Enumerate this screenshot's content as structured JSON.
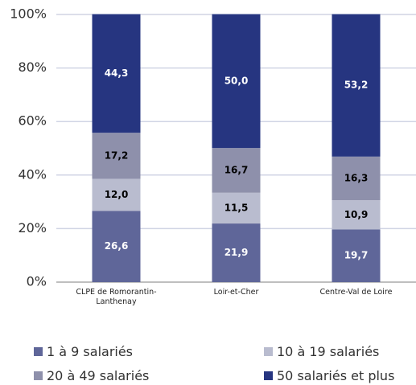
{
  "chart_data": {
    "type": "stacked_bar",
    "categories": [
      "CLPE de Romorantin-Lanthenay",
      "Loir-et-Cher",
      "Centre-Val de Loire"
    ],
    "series": [
      {
        "name": "1 à 9 salariés",
        "color": "#5f6699",
        "label_color": "#ffffff",
        "values": [
          26.6,
          21.9,
          19.7
        ],
        "value_labels": [
          "26,6",
          "21,9",
          "19,7"
        ]
      },
      {
        "name": "10 à 19 salariés",
        "color": "#b9bccf",
        "label_color": "#000000",
        "values": [
          12.0,
          11.5,
          10.9
        ],
        "value_labels": [
          "12,0",
          "11,5",
          "10,9"
        ]
      },
      {
        "name": "20 à 49 salariés",
        "color": "#8e90ab",
        "label_color": "#000000",
        "values": [
          17.2,
          16.7,
          16.3
        ],
        "value_labels": [
          "17,2",
          "16,7",
          "16,3"
        ]
      },
      {
        "name": "50 salariés et plus",
        "color": "#263580",
        "label_color": "#ffffff",
        "values": [
          44.3,
          50.0,
          53.2
        ],
        "value_labels": [
          "44,3",
          "50,0",
          "53,2"
        ]
      }
    ],
    "ylim": [
      0,
      100
    ],
    "yticks": [
      {
        "value": 0,
        "label": "0%"
      },
      {
        "value": 20,
        "label": "20%"
      },
      {
        "value": 40,
        "label": "40%"
      },
      {
        "value": 60,
        "label": "60%"
      },
      {
        "value": 80,
        "label": "80%"
      },
      {
        "value": 100,
        "label": "100%"
      }
    ],
    "grid": true
  }
}
